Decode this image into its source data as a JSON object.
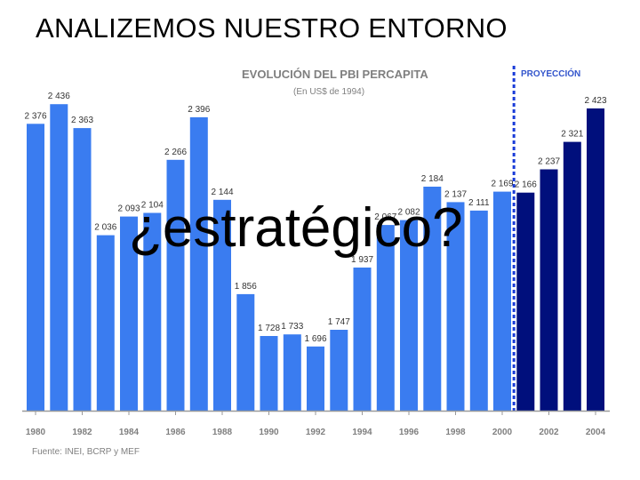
{
  "slide": {
    "title": "ANALIZEMOS NUESTRO ENTORNO",
    "overlay": "¿estratégico?"
  },
  "colors": {
    "historical": "#3a7cf0",
    "projection": "#000f7c",
    "projection_label": "#3355cc",
    "divider": "#1a3cd8"
  },
  "chart_data": {
    "type": "bar",
    "title": "EVOLUCIÓN DEL PBI PERCAPITA",
    "subtitle": "(En US$ de 1994)",
    "projection_label": "PROYECCIÓN",
    "source": "Fuente: INEI, BCRP y MEF",
    "categories": [
      "1980",
      "1981",
      "1982",
      "1983",
      "1984",
      "1985",
      "1986",
      "1987",
      "1988",
      "1989",
      "1990",
      "1991",
      "1992",
      "1993",
      "1994",
      "1995",
      "1996",
      "1997",
      "1998",
      "1999",
      "2000",
      "2001",
      "2002",
      "2003",
      "2004"
    ],
    "values": [
      2376,
      2436,
      2363,
      2036,
      2093,
      2104,
      2266,
      2396,
      2144,
      1856,
      1728,
      1733,
      1696,
      1747,
      1937,
      2067,
      2082,
      2184,
      2137,
      2111,
      2169,
      2166,
      2237,
      2321,
      2423
    ],
    "value_labels": [
      "2 376",
      "2 436",
      "2 363",
      "2 036",
      "2 093",
      "2 104",
      "2 266",
      "2 396",
      "2 144",
      "1 856",
      "1 728",
      "1 733",
      "1 696",
      "1 747",
      "1 937",
      "2 067",
      "2 082",
      "2 184",
      "2 137",
      "2 111",
      "2 169",
      "2 166",
      "2 237",
      "2 321",
      "2 423"
    ],
    "tick_labels": [
      "1980",
      "1982",
      "1984",
      "1986",
      "1988",
      "1990",
      "1992",
      "1994",
      "1996",
      "1998",
      "2000",
      "2002",
      "2004"
    ],
    "projection_start": "2001",
    "ylim": [
      1500,
      2500
    ],
    "legend": "none",
    "grid": false
  }
}
